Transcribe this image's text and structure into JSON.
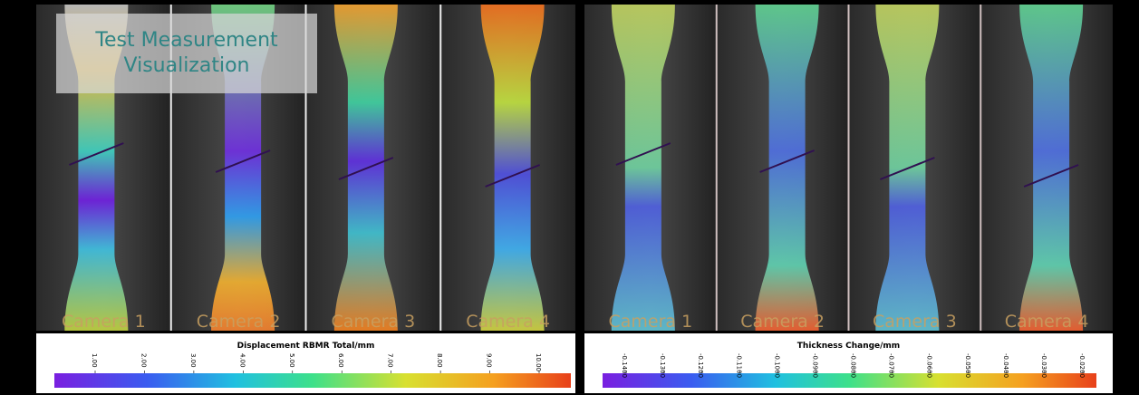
{
  "overlay": {
    "title": "Test Measurement Visualization"
  },
  "panels": [
    {
      "cameras": [
        "Camera 1",
        "Camera 2",
        "Camera 3",
        "Camera 4"
      ],
      "colorbar": {
        "title": "Displacement RBMR Total/mm",
        "ticks": [
          "1.00",
          "2.00",
          "3.00",
          "4.00",
          "5.00",
          "6.00",
          "7.00",
          "8.00",
          "9.00",
          "10.00"
        ]
      }
    },
    {
      "cameras": [
        "Camera 1",
        "Camera 2",
        "Camera 3",
        "Camera 4"
      ],
      "colorbar": {
        "title": "Thickness Change/mm",
        "ticks": [
          "-0.1400",
          "-0.1300",
          "-0.1200",
          "-0.1100",
          "-0.1000",
          "-0.0900",
          "-0.0800",
          "-0.0700",
          "-0.0600",
          "-0.0500",
          "-0.0400",
          "-0.0300",
          "-0.0200"
        ]
      }
    }
  ]
}
